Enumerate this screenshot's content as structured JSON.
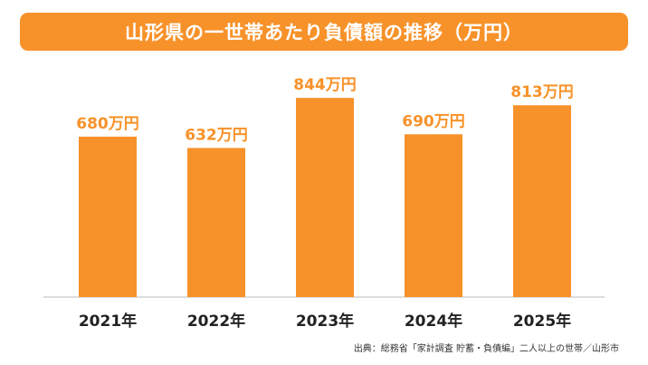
{
  "chart_data": {
    "type": "bar",
    "title": "山形県の一世帯あたり負債額の推移（万円）",
    "categories": [
      "2021年",
      "2022年",
      "2023年",
      "2024年",
      "2025年"
    ],
    "values": [
      680,
      632,
      844,
      690,
      813
    ],
    "data_labels": [
      "680万円",
      "632万円",
      "844万円",
      "690万円",
      "813万円"
    ],
    "unit": "万円",
    "ylim": [
      0,
      900
    ],
    "grid": false,
    "legend": "none",
    "bar_color": "#f7922a",
    "label_color": "#f7922a"
  },
  "source": "出典：総務省「家計調査 貯蓄・負債編」二人以上の世帯／山形市"
}
